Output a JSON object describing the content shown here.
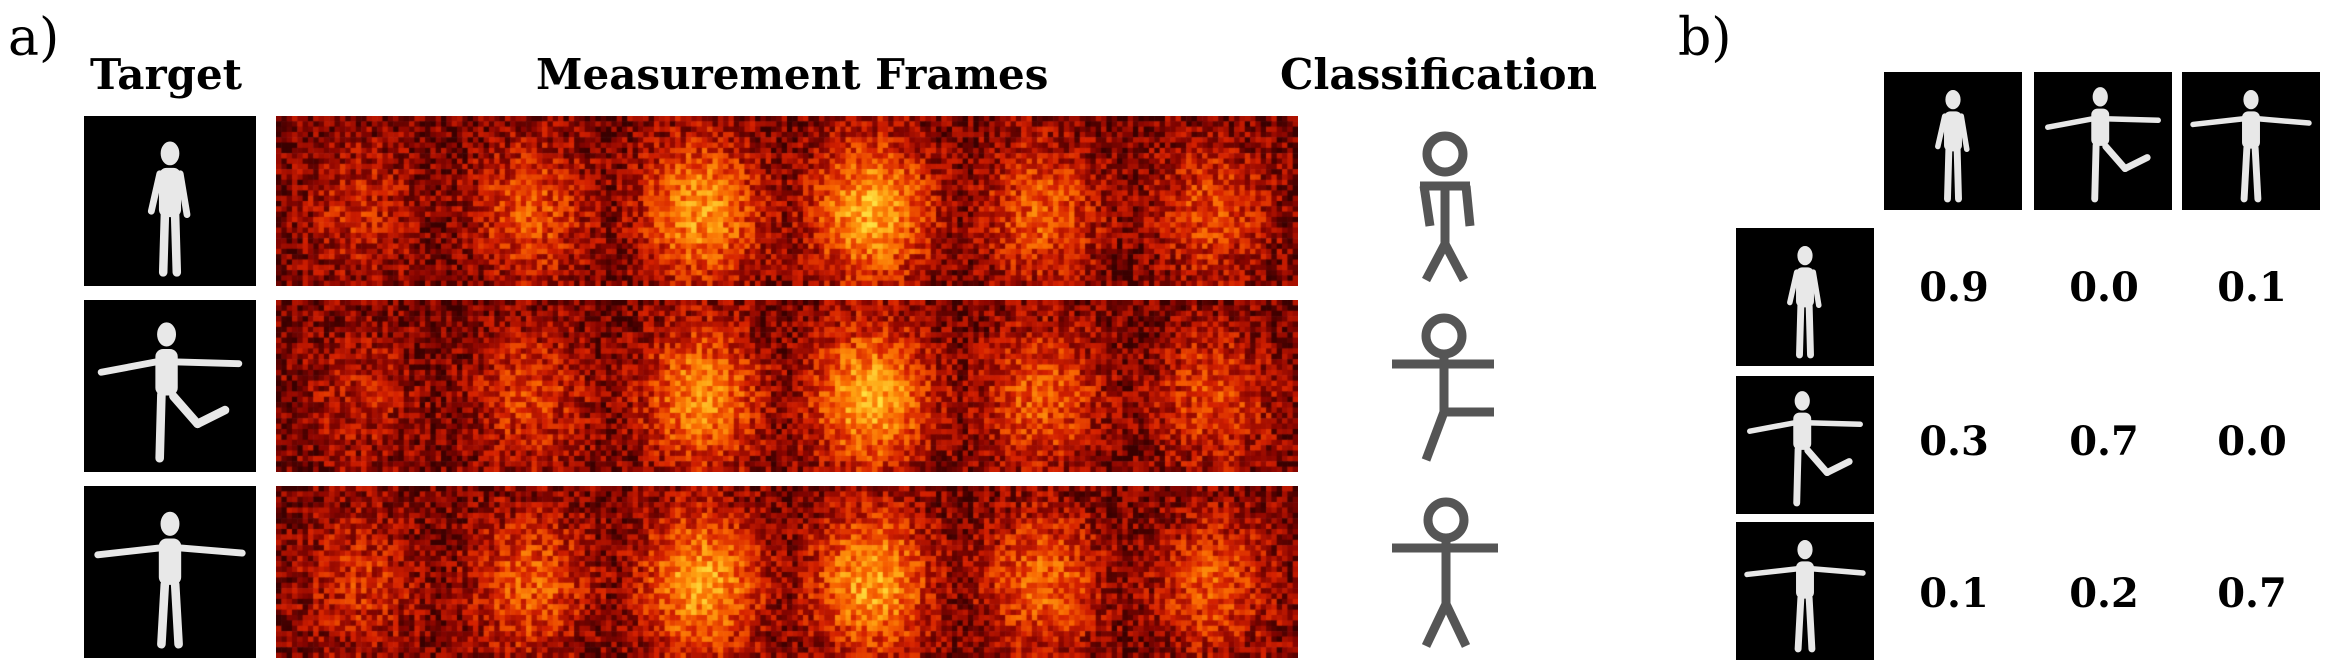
{
  "panel_a": {
    "label": "a)",
    "headers": {
      "target": "Target",
      "measurement": "Measurement Frames",
      "classification": "Classification"
    },
    "rows": [
      {
        "pose": "standing",
        "frame_intensity": [
          0.35,
          0.55,
          0.85,
          0.95,
          0.6,
          0.5
        ]
      },
      {
        "pose": "arms-out-leg-raised",
        "frame_intensity": [
          0.3,
          0.45,
          0.8,
          0.95,
          0.6,
          0.5
        ]
      },
      {
        "pose": "arms-out",
        "frame_intensity": [
          0.4,
          0.6,
          0.9,
          0.9,
          0.65,
          0.55
        ]
      }
    ],
    "colormap": [
      "#3a0000",
      "#8a0500",
      "#d42000",
      "#f76000",
      "#ffa010",
      "#ffe040"
    ]
  },
  "panel_b": {
    "label": "b)",
    "column_poses": [
      "standing",
      "arms-out-leg-raised",
      "arms-out"
    ],
    "row_poses": [
      "standing",
      "arms-out-leg-raised",
      "arms-out"
    ],
    "matrix": [
      [
        "0.9",
        "0.0",
        "0.1"
      ],
      [
        "0.3",
        "0.7",
        "0.0"
      ],
      [
        "0.1",
        "0.2",
        "0.7"
      ]
    ]
  }
}
